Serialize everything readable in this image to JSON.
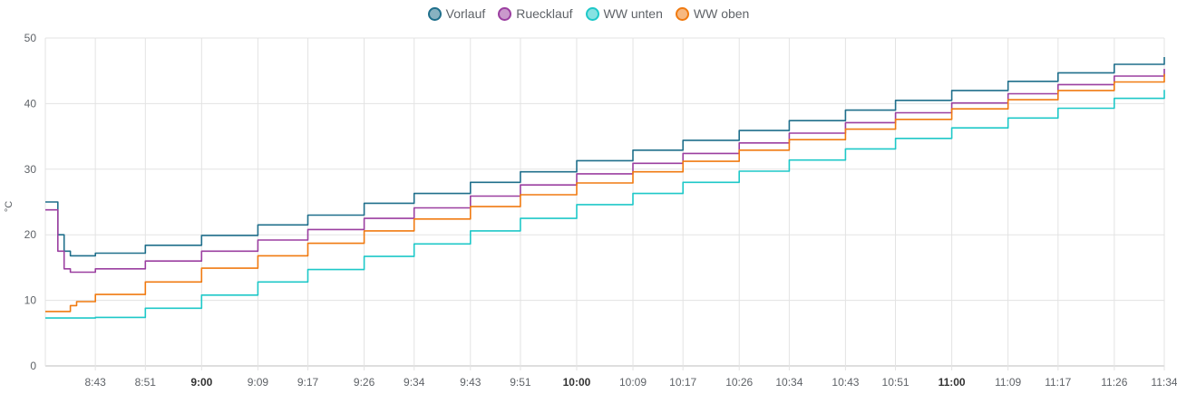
{
  "chart_data": {
    "type": "line",
    "ylabel": "°C",
    "ylim": [
      0,
      50
    ],
    "yticks": [
      "0",
      "10",
      "20",
      "30",
      "40",
      "50"
    ],
    "xticks": [
      {
        "label": "8:43",
        "bold": false
      },
      {
        "label": "8:51",
        "bold": false
      },
      {
        "label": "9:00",
        "bold": true
      },
      {
        "label": "9:09",
        "bold": false
      },
      {
        "label": "9:17",
        "bold": false
      },
      {
        "label": "9:26",
        "bold": false
      },
      {
        "label": "9:34",
        "bold": false
      },
      {
        "label": "9:43",
        "bold": false
      },
      {
        "label": "9:51",
        "bold": false
      },
      {
        "label": "10:00",
        "bold": true
      },
      {
        "label": "10:09",
        "bold": false
      },
      {
        "label": "10:17",
        "bold": false
      },
      {
        "label": "10:26",
        "bold": false
      },
      {
        "label": "10:34",
        "bold": false
      },
      {
        "label": "10:43",
        "bold": false
      },
      {
        "label": "10:51",
        "bold": false
      },
      {
        "label": "11:00",
        "bold": true
      },
      {
        "label": "11:09",
        "bold": false
      },
      {
        "label": "11:17",
        "bold": false
      },
      {
        "label": "11:26",
        "bold": false
      },
      {
        "label": "11:34",
        "bold": false
      }
    ],
    "x": [
      "8:35",
      "8:36",
      "8:37",
      "8:38",
      "8:39",
      "8:40",
      "8:43",
      "8:51",
      "9:00",
      "9:09",
      "9:17",
      "9:26",
      "9:34",
      "9:43",
      "9:51",
      "10:00",
      "10:09",
      "10:17",
      "10:26",
      "10:34",
      "10:43",
      "10:51",
      "11:00",
      "11:09",
      "11:17",
      "11:26",
      "11:34"
    ],
    "series": [
      {
        "name": "Vorlauf",
        "color": "#1f6f8b",
        "values": [
          25,
          25,
          20,
          17.5,
          16.8,
          16.8,
          17.2,
          18.4,
          19.9,
          21.5,
          23.0,
          24.8,
          26.3,
          28.0,
          29.6,
          31.3,
          32.9,
          34.4,
          35.9,
          37.4,
          39.0,
          40.5,
          42.0,
          43.4,
          44.7,
          46.0,
          47.1
        ]
      },
      {
        "name": "Ruecklauf",
        "color": "#9b3fa0",
        "values": [
          23.8,
          23.8,
          17.5,
          14.8,
          14.3,
          14.3,
          14.8,
          16.0,
          17.5,
          19.2,
          20.8,
          22.5,
          24.1,
          25.9,
          27.6,
          29.3,
          30.9,
          32.4,
          34.0,
          35.5,
          37.1,
          38.6,
          40.1,
          41.5,
          42.9,
          44.2,
          45.3
        ]
      },
      {
        "name": "WW unten",
        "color": "#1ec8c8",
        "values": [
          7.3,
          7.3,
          7.3,
          7.3,
          7.3,
          7.3,
          7.4,
          8.8,
          10.8,
          12.8,
          14.7,
          16.7,
          18.6,
          20.6,
          22.5,
          24.6,
          26.3,
          28.0,
          29.7,
          31.4,
          33.1,
          34.7,
          36.3,
          37.8,
          39.3,
          40.8,
          42.1
        ]
      },
      {
        "name": "WW oben",
        "color": "#f07a10",
        "values": [
          8.3,
          8.3,
          8.3,
          8.3,
          9.2,
          9.8,
          10.9,
          12.8,
          14.9,
          16.8,
          18.7,
          20.6,
          22.4,
          24.3,
          26.1,
          27.9,
          29.6,
          31.2,
          32.9,
          34.5,
          36.1,
          37.6,
          39.2,
          40.6,
          42.0,
          43.3,
          44.5
        ]
      }
    ],
    "grid": true,
    "legend": "top-center"
  }
}
